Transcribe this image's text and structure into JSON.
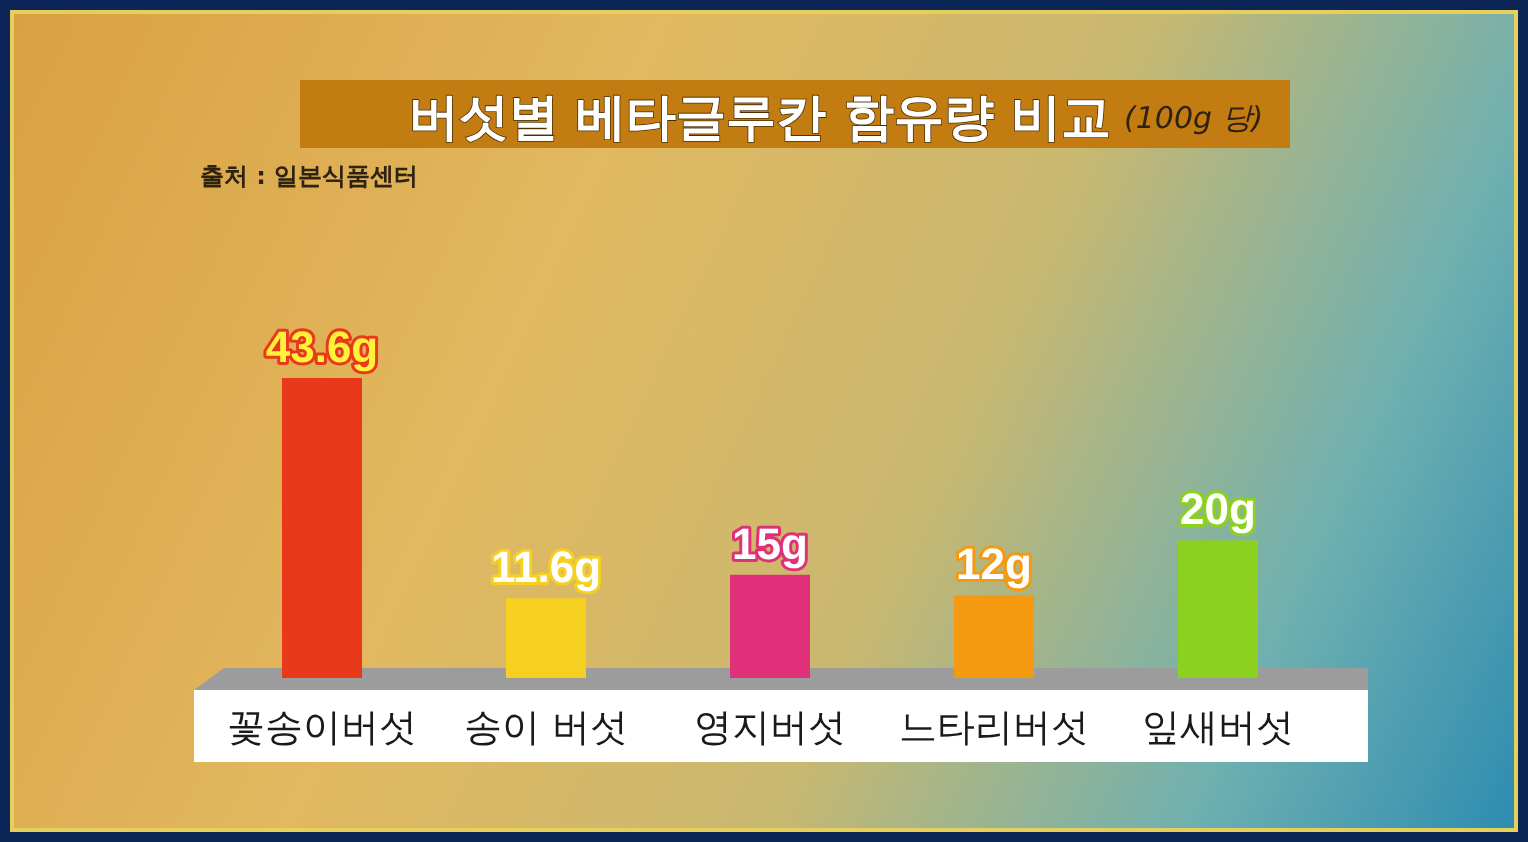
{
  "chart_data": {
    "type": "bar",
    "title": "버섯별 베타글루칸 함유량 비교",
    "subtitle": "(100g 당)",
    "annotations": [
      "출처 : 일본식품센터"
    ],
    "categories": [
      "꽃송이버섯",
      "송이 버섯",
      "영지버섯",
      "느타리버섯",
      "잎새버섯"
    ],
    "values": [
      43.6,
      11.6,
      15,
      12,
      20
    ],
    "value_labels": [
      "43.6g",
      "11.6g",
      "15g",
      "12g",
      "20g"
    ],
    "colors": [
      "#e8391a",
      "#f5d020",
      "#e0307a",
      "#f59a10",
      "#8cd020"
    ]
  }
}
